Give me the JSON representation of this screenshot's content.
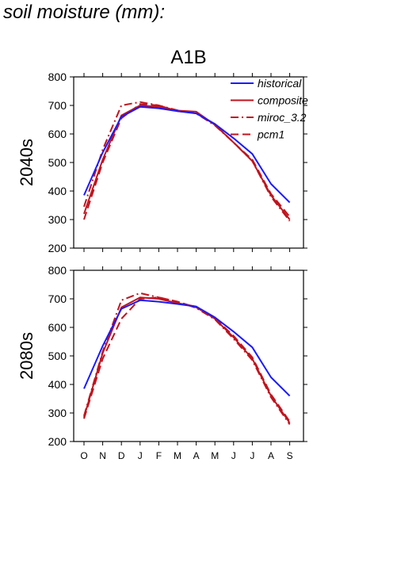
{
  "page": {
    "title": "soil moisture (mm):"
  },
  "colors": {
    "historical": "#1a1aff",
    "scenario": "#c0141e",
    "axis": "#000000"
  },
  "chart_data": {
    "type": "line",
    "title": "A1B",
    "categories": [
      "O",
      "N",
      "D",
      "J",
      "F",
      "M",
      "A",
      "M",
      "J",
      "J",
      "A",
      "S"
    ],
    "ylim": [
      200,
      800
    ],
    "yticks": [
      200,
      300,
      400,
      500,
      600,
      700,
      800
    ],
    "grid": false,
    "legend_position": "top-right",
    "legend": [
      {
        "name": "historical",
        "style": "solid",
        "color": "#1a1aff"
      },
      {
        "name": "composite",
        "style": "solid",
        "color": "#c0141e"
      },
      {
        "name": "miroc_3.2",
        "style": "dashdot",
        "color": "#c0141e"
      },
      {
        "name": "pcm1",
        "style": "dashed",
        "color": "#c0141e"
      }
    ],
    "panels": [
      {
        "label": "2040s",
        "series": [
          {
            "name": "historical",
            "values": [
              385,
              535,
              660,
              695,
              690,
              680,
              672,
              635,
              585,
              530,
              425,
              360
            ]
          },
          {
            "name": "composite",
            "values": [
              320,
              510,
              665,
              700,
              695,
              682,
              678,
              632,
              570,
              505,
              385,
              300
            ]
          },
          {
            "name": "miroc_3.2",
            "values": [
              345,
              545,
              700,
              712,
              700,
              683,
              672,
              630,
              570,
              505,
              380,
              295
            ]
          },
          {
            "name": "pcm1",
            "values": [
              300,
              500,
              655,
              705,
              700,
              680,
              673,
              633,
              570,
              510,
              390,
              310
            ]
          }
        ]
      },
      {
        "label": "2080s",
        "series": [
          {
            "name": "historical",
            "values": [
              385,
              535,
              665,
              695,
              690,
              682,
              673,
              635,
              585,
              530,
              425,
              360
            ]
          },
          {
            "name": "composite",
            "values": [
              285,
              510,
              670,
              705,
              700,
              685,
              673,
              630,
              565,
              490,
              360,
              265
            ]
          },
          {
            "name": "miroc_3.2",
            "values": [
              290,
              515,
              695,
              720,
              705,
              690,
              668,
              628,
              560,
              485,
              355,
              260
            ]
          },
          {
            "name": "pcm1",
            "values": [
              280,
              490,
              630,
              700,
              705,
              690,
              670,
              632,
              570,
              495,
              365,
              270
            ]
          }
        ]
      }
    ]
  }
}
